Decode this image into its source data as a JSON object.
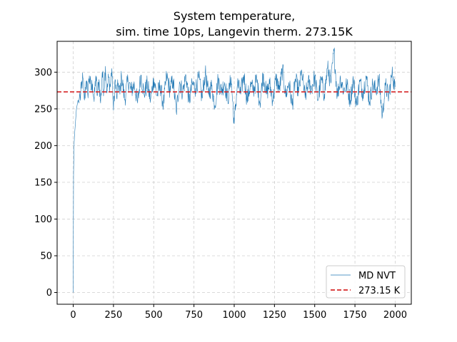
{
  "chart_data": {
    "type": "line",
    "title_line1": "System temperature,",
    "title_line2": "sim. time 10ps, Langevin therm. 273.15K",
    "xlabel": "",
    "ylabel": "",
    "xlim": [
      -100,
      2100
    ],
    "ylim": [
      -16,
      342
    ],
    "xticks": [
      0,
      250,
      500,
      750,
      1000,
      1250,
      1500,
      1750,
      2000
    ],
    "yticks": [
      0,
      50,
      100,
      150,
      200,
      250,
      300
    ],
    "xtick_labels": [
      "0",
      "250",
      "500",
      "750",
      "1000",
      "1250",
      "1500",
      "1750",
      "2000"
    ],
    "ytick_labels": [
      "0",
      "50",
      "100",
      "150",
      "200",
      "250",
      "300"
    ],
    "grid": true,
    "legend_position": "bottom-right",
    "series": [
      {
        "name": "MD NVT",
        "color": "#1f77b4",
        "style": "solid",
        "x": [
          0,
          2,
          4,
          6,
          8,
          10,
          12,
          14,
          16,
          18,
          20,
          25,
          30,
          35,
          40,
          45,
          50,
          60,
          70,
          80,
          90,
          100,
          110,
          120,
          130,
          140,
          150,
          160,
          170,
          180,
          190,
          200,
          210,
          220,
          230,
          240,
          250,
          260,
          270,
          280,
          290,
          300,
          320,
          340,
          360,
          380,
          400,
          420,
          440,
          460,
          480,
          500,
          520,
          540,
          560,
          580,
          600,
          620,
          640,
          660,
          680,
          700,
          720,
          740,
          760,
          780,
          800,
          820,
          840,
          860,
          880,
          900,
          920,
          940,
          960,
          980,
          1000,
          1020,
          1040,
          1060,
          1080,
          1100,
          1120,
          1140,
          1160,
          1180,
          1200,
          1220,
          1240,
          1260,
          1280,
          1300,
          1320,
          1340,
          1360,
          1380,
          1400,
          1420,
          1440,
          1460,
          1480,
          1500,
          1520,
          1540,
          1560,
          1580,
          1600,
          1620,
          1640,
          1660,
          1680,
          1700,
          1720,
          1740,
          1760,
          1780,
          1800,
          1820,
          1840,
          1860,
          1880,
          1900,
          1920,
          1940,
          1960,
          1980,
          2000
        ],
        "values": [
          0,
          160,
          190,
          205,
          214,
          220,
          226,
          232,
          238,
          244,
          250,
          256,
          262,
          258,
          270,
          265,
          278,
          292,
          262,
          288,
          270,
          295,
          276,
          284,
          260,
          295,
          268,
          290,
          258,
          300,
          275,
          308,
          272,
          293,
          280,
          305,
          248,
          290,
          265,
          285,
          270,
          295,
          262,
          290,
          275,
          283,
          258,
          296,
          270,
          284,
          262,
          291,
          268,
          282,
          255,
          295,
          276,
          289,
          246,
          287,
          272,
          296,
          260,
          284,
          278,
          292,
          265,
          299,
          270,
          281,
          255,
          290,
          274,
          286,
          262,
          293,
          230,
          285,
          270,
          296,
          262,
          282,
          276,
          290,
          258,
          298,
          270,
          284,
          262,
          292,
          276,
          304,
          268,
          286,
          255,
          290,
          274,
          300,
          265,
          286,
          278,
          294,
          262,
          290,
          270,
          306,
          285,
          329,
          268,
          292,
          275,
          283,
          262,
          290,
          255,
          287,
          272,
          295,
          260,
          283,
          275,
          290,
          240,
          282,
          266,
          298,
          280
        ]
      },
      {
        "name": "273.15 K",
        "color": "#d62728",
        "style": "dashed",
        "x": [
          -100,
          2100
        ],
        "values": [
          273.15,
          273.15
        ]
      }
    ]
  }
}
